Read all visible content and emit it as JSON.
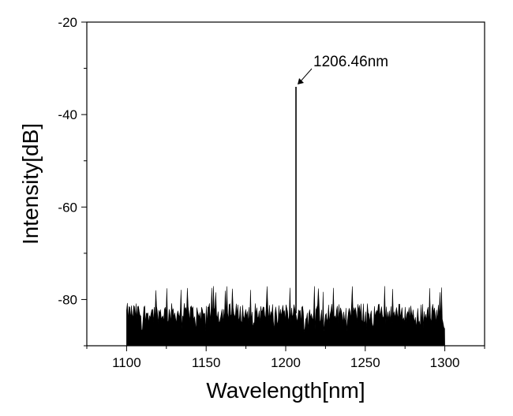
{
  "chart_data": {
    "type": "line",
    "xlabel": "Wavelength[nm]",
    "ylabel": "Intensity[dB]",
    "xlim": [
      1075,
      1325
    ],
    "ylim": [
      -90,
      -20
    ],
    "x_ticks": [
      1100,
      1150,
      1200,
      1250,
      1300
    ],
    "y_ticks": [
      -80,
      -60,
      -40,
      -20
    ],
    "x_tick_labels": [
      "1100",
      "1150",
      "1200",
      "1250",
      "1300"
    ],
    "y_tick_labels": [
      "-80",
      "-60",
      "-40",
      "-20"
    ],
    "grid": false,
    "series": [
      {
        "style": "noise-floor",
        "x_range": [
          1100,
          1300
        ],
        "noise_floor_mean_db": -83,
        "noise_floor_min_db": -87,
        "noise_floor_max_db": -77,
        "color": "#000000"
      },
      {
        "style": "peak",
        "peak_x": 1206.46,
        "peak_y": -34,
        "color": "#000000"
      }
    ],
    "annotations": [
      {
        "text": "1206.46nm",
        "x": 1206.46,
        "y": -34
      }
    ]
  }
}
